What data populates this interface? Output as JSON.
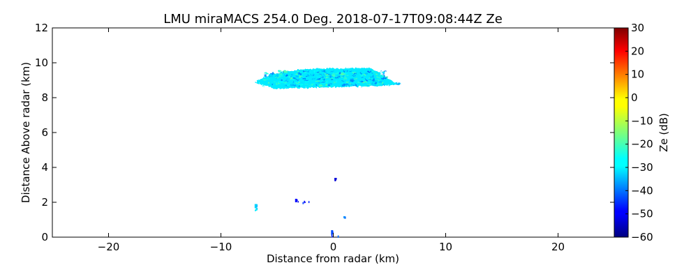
{
  "chart_data": {
    "type": "heatmap",
    "title": "LMU miraMACS 254.0 Deg. 2018-07-17T09:08:44Z  Ze",
    "xlabel": "Distance from radar (km)",
    "ylabel": "Distance Above radar  (km)",
    "xlim": [
      -25,
      25
    ],
    "ylim": [
      0,
      12
    ],
    "x_ticks": [
      -20,
      -10,
      0,
      10,
      20
    ],
    "x_tick_labels": [
      "−20",
      "−10",
      "0",
      "10",
      "20"
    ],
    "y_ticks": [
      0,
      2,
      4,
      6,
      8,
      10,
      12
    ],
    "y_tick_labels": [
      "0",
      "2",
      "4",
      "6",
      "8",
      "10",
      "12"
    ],
    "colorbar": {
      "label": "Ze (dB)",
      "colormap": "jet",
      "range": [
        -60,
        30
      ],
      "ticks": [
        30,
        20,
        10,
        0,
        -10,
        -20,
        -30,
        -40,
        -50,
        -60
      ],
      "tick_labels": [
        "30",
        "20",
        "10",
        "0",
        "−10",
        "−20",
        "−30",
        "−40",
        "−50",
        "−60"
      ]
    },
    "echoes": [
      {
        "name": "cloud layer",
        "x_range": [
          -7.0,
          6.0
        ],
        "y_range": [
          8.5,
          9.7
        ],
        "ze_db": -28
      },
      {
        "name": "speckle",
        "x_range": [
          -7.0,
          -6.8
        ],
        "y_range": [
          1.5,
          1.9
        ],
        "ze_db": -30
      },
      {
        "name": "speckle",
        "x_range": [
          -3.4,
          -2.2
        ],
        "y_range": [
          2.0,
          2.2
        ],
        "ze_db": -48
      },
      {
        "name": "speckle",
        "x_range": [
          0.1,
          0.3
        ],
        "y_range": [
          3.3,
          3.4
        ],
        "ze_db": -52
      },
      {
        "name": "speckle",
        "x_range": [
          0.9,
          1.0
        ],
        "y_range": [
          1.1,
          1.2
        ],
        "ze_db": -36
      },
      {
        "name": "speckle",
        "x_range": [
          -0.2,
          0.4
        ],
        "y_range": [
          0.0,
          0.4
        ],
        "ze_db": -42
      }
    ]
  }
}
